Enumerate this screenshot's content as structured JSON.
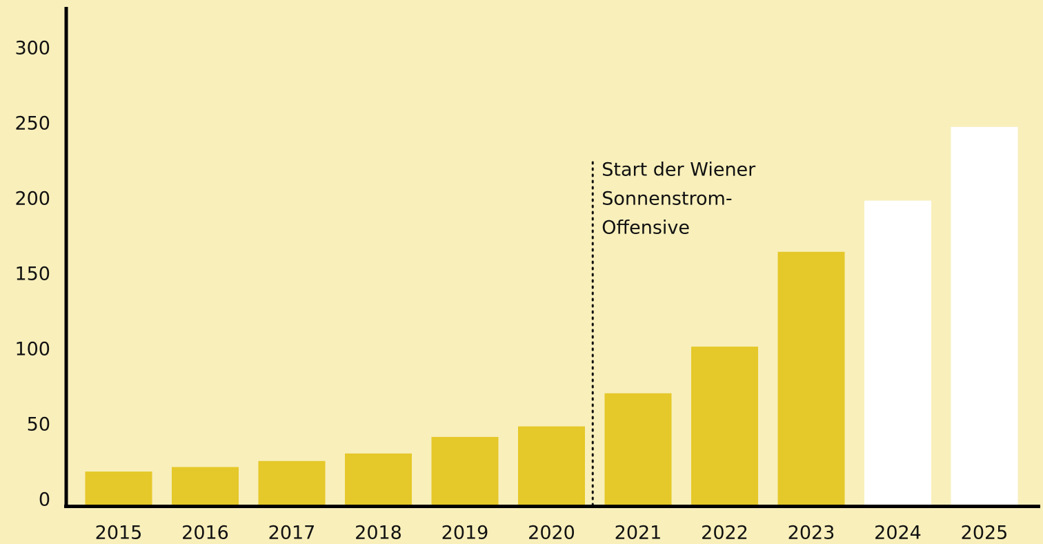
{
  "chart_data": {
    "type": "bar",
    "categories": [
      "2015",
      "2016",
      "2017",
      "2018",
      "2019",
      "2020",
      "2021",
      "2022",
      "2023",
      "2024",
      "2025"
    ],
    "values": [
      22,
      25,
      29,
      34,
      45,
      52,
      74,
      105,
      168,
      202,
      251
    ],
    "colors": [
      "#e5c829",
      "#e5c829",
      "#e5c829",
      "#e5c829",
      "#e5c829",
      "#e5c829",
      "#e5c829",
      "#e5c829",
      "#e5c829",
      "#ffffff",
      "#ffffff"
    ],
    "ylim": [
      0,
      330
    ],
    "yticks": [
      0,
      50,
      100,
      150,
      200,
      250,
      300
    ],
    "grid": false,
    "annotation": {
      "lines": [
        "Start der Wiener",
        "Sonnenstrom-",
        "Offensive"
      ]
    }
  }
}
